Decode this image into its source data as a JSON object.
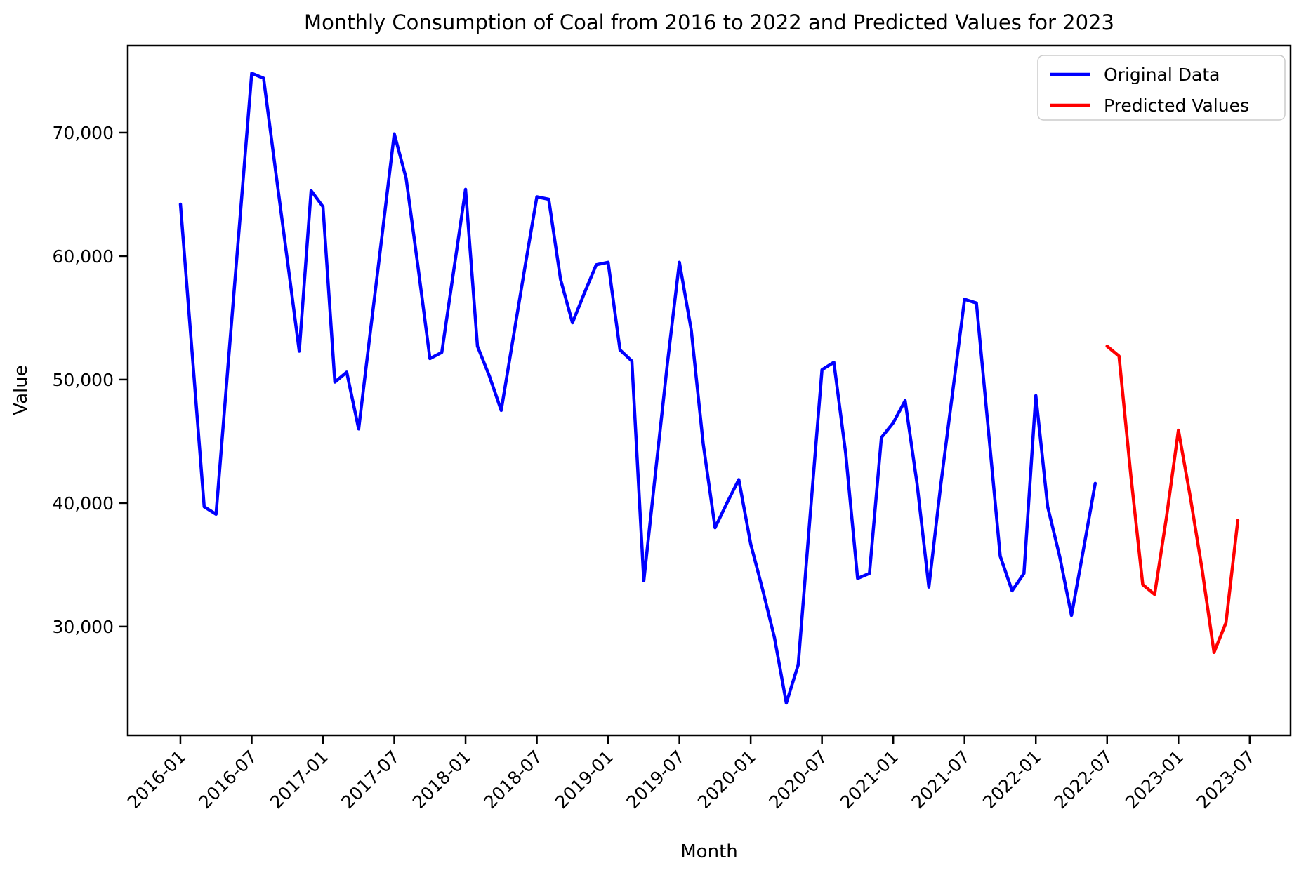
{
  "chart_data": {
    "type": "line",
    "title": "Monthly Consumption of Coal from 2016 to 2022 and Predicted Values for 2023",
    "xlabel": "Month",
    "ylabel": "Value",
    "grid": false,
    "legend_position": "upper right",
    "x_tick_labels": [
      "2016-01",
      "2016-07",
      "2017-01",
      "2017-07",
      "2018-01",
      "2018-07",
      "2019-01",
      "2019-07",
      "2020-01",
      "2020-07",
      "2021-01",
      "2021-07",
      "2022-01",
      "2022-07",
      "2023-01",
      "2023-07"
    ],
    "x_ticks": [
      0,
      6,
      12,
      18,
      24,
      30,
      36,
      42,
      48,
      54,
      60,
      66,
      72,
      78,
      84,
      90
    ],
    "y_tick_labels": [
      "30,000",
      "40,000",
      "50,000",
      "60,000",
      "70,000"
    ],
    "y_ticks": [
      30000,
      40000,
      50000,
      60000,
      70000
    ],
    "xlim": [
      -4.43,
      93.44
    ],
    "ylim": [
      21186,
      77045
    ],
    "legend_items": [
      {
        "label": "Original Data",
        "color": "#0000ff"
      },
      {
        "label": "Predicted Values",
        "color": "#ff0000"
      }
    ],
    "series": [
      {
        "name": "Original Data",
        "color": "#0000ff",
        "start_month": "2016-01",
        "start_index": 0,
        "values": [
          64200,
          52000,
          39700,
          39100,
          51000,
          62900,
          74800,
          74400,
          67000,
          59700,
          52300,
          65300,
          64000,
          49800,
          50600,
          46000,
          54000,
          61900,
          69900,
          66300,
          59100,
          51700,
          52200,
          58800,
          65400,
          52700,
          50300,
          47500,
          53300,
          59100,
          64800,
          64600,
          58100,
          54600,
          57000,
          59300,
          59500,
          52400,
          51500,
          33700,
          42600,
          51400,
          59500,
          54000,
          44800,
          38000,
          40000,
          41900,
          36700,
          33000,
          29100,
          23800,
          26900,
          38900,
          50800,
          51400,
          44000,
          33900,
          34300,
          45300,
          46500,
          48300,
          41600,
          33200,
          41500,
          49000,
          56500,
          56200,
          46000,
          35700,
          32900,
          34300,
          48700,
          39700,
          35700,
          30900,
          36200,
          41600
        ]
      },
      {
        "name": "Predicted Values",
        "color": "#ff0000",
        "start_month": "2022-07",
        "start_index": 78,
        "values": [
          52700,
          51900,
          42200,
          33400,
          32600,
          38900,
          45900,
          40500,
          34600,
          27900,
          30300,
          38600
        ]
      }
    ]
  },
  "colors": {
    "axes": "#000000",
    "background": "#ffffff",
    "legend_border": "#cccccc"
  }
}
